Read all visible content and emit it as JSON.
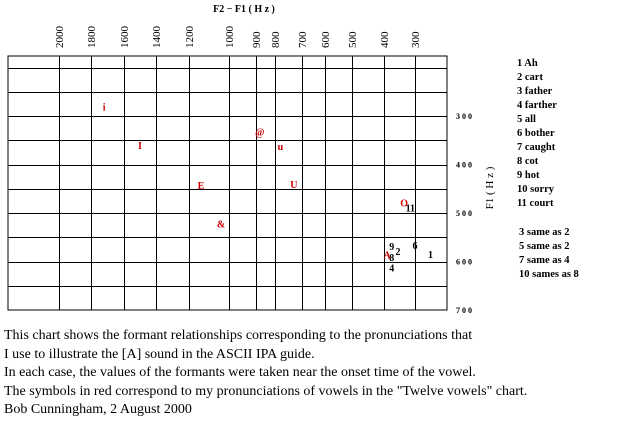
{
  "chart_data": {
    "type": "scatter",
    "x_axis_label": "F2 − F1 ( H z )",
    "y_axis_label": "F1 ( H z )",
    "x_ticks": [
      2000,
      1800,
      1600,
      1400,
      1200,
      1000,
      900,
      800,
      700,
      600,
      500,
      400,
      300
    ],
    "x_tick_labels": [
      "2000",
      "1800",
      "1600",
      "1400",
      "1200",
      "1000",
      "900",
      "800",
      "700",
      "600",
      "500",
      "400",
      "300"
    ],
    "y_ticks": [
      300,
      400,
      500,
      600,
      700
    ],
    "y_tick_labels": [
      "3 0 0",
      "4 0 0",
      "5 0 0",
      "6 0 0",
      "7 0 0"
    ],
    "grid": true,
    "series": [
      {
        "color": "#000000",
        "points": [
          {
            "label": "1",
            "x": 250,
            "y": 585
          },
          {
            "label": "2",
            "x": 355,
            "y": 578
          },
          {
            "label": "4",
            "x": 375,
            "y": 612
          },
          {
            "label": "6",
            "x": 300,
            "y": 566
          },
          {
            "label": "8",
            "x": 375,
            "y": 591
          },
          {
            "label": "9",
            "x": 375,
            "y": 568
          },
          {
            "label": "11",
            "x": 315,
            "y": 489
          }
        ]
      },
      {
        "color": "#cc0000",
        "points": [
          {
            "label": "i",
            "x": 1720,
            "y": 280
          },
          {
            "label": "I",
            "x": 1500,
            "y": 360
          },
          {
            "label": "E",
            "x": 1140,
            "y": 442
          },
          {
            "label": "&",
            "x": 1040,
            "y": 522
          },
          {
            "label": "@",
            "x": 880,
            "y": 332
          },
          {
            "label": "u",
            "x": 780,
            "y": 362
          },
          {
            "label": "U",
            "x": 730,
            "y": 440
          },
          {
            "label": "O",
            "x": 335,
            "y": 478
          },
          {
            "label": "A",
            "x": 390,
            "y": 586
          }
        ]
      }
    ]
  },
  "legend": {
    "entries": [
      "1 Ah",
      "2 cart",
      "3 father",
      "4 farther",
      "5 all",
      "6 bother",
      "7 caught",
      "8 cot",
      "9 hot",
      "10 sorry",
      "11 court"
    ],
    "notes": [
      "3 same as 2",
      "5 same as 2",
      "7 same as 4",
      "10 sames as 8"
    ]
  },
  "caption": {
    "lines": [
      "This chart shows the formant relationships corresponding to the pronunciations that",
      "I use to illustrate the [A] sound in the ASCII IPA guide.",
      "In each case, the values of the formants were taken near the onset time of the vowel.",
      "The symbols in red  correspond to my pronunciations of vowels in the  \"Twelve vowels\" chart.",
      "Bob Cunningham, 2 August 2000"
    ]
  }
}
